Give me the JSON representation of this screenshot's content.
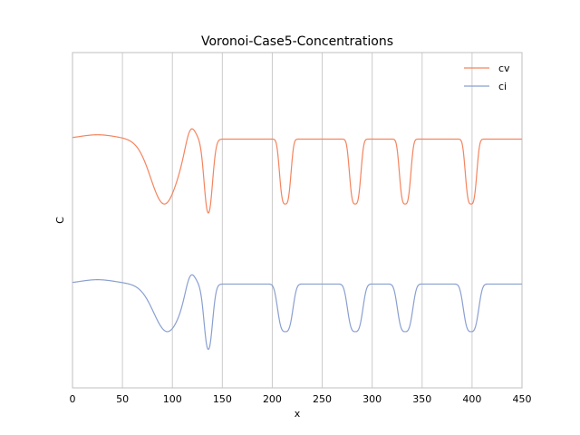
{
  "chart_data": {
    "type": "line",
    "title": "Voronoi-Case5-Concentrations",
    "xlabel": "x",
    "ylabel": "C",
    "xlim": [
      0,
      450
    ],
    "x_ticks": [
      0,
      50,
      100,
      150,
      200,
      250,
      300,
      350,
      400,
      450
    ],
    "ylim": [
      -0.3,
      1.25
    ],
    "y_ticks_visible": false,
    "grid": "vertical",
    "legend_position": "top-right",
    "series": [
      {
        "name": "cv",
        "color": "#f4845f",
        "baseline": 0.85,
        "dips": [
          {
            "center": 92,
            "depth": 0.3,
            "width": 12
          },
          {
            "center": 136,
            "depth": 0.34,
            "width": 4
          },
          {
            "center": 213,
            "depth": 0.3,
            "width": 3
          },
          {
            "center": 283,
            "depth": 0.3,
            "width": 3
          },
          {
            "center": 333,
            "depth": 0.3,
            "width": 3
          },
          {
            "center": 399,
            "depth": 0.3,
            "width": 3
          }
        ],
        "shoulders": [
          {
            "from": 115,
            "value": 0.72,
            "width": 8
          }
        ]
      },
      {
        "name": "ci",
        "color": "#8a9fd0",
        "baseline": 0.18,
        "dips": [
          {
            "center": 95,
            "depth": 0.22,
            "width": 12
          },
          {
            "center": 136,
            "depth": 0.3,
            "width": 4
          },
          {
            "center": 213,
            "depth": 0.22,
            "width": 4
          },
          {
            "center": 283,
            "depth": 0.22,
            "width": 4
          },
          {
            "center": 333,
            "depth": 0.22,
            "width": 4
          },
          {
            "center": 399,
            "depth": 0.22,
            "width": 4
          }
        ],
        "shoulders": [
          {
            "from": 118,
            "value": 0.08,
            "width": 8
          }
        ]
      }
    ]
  }
}
